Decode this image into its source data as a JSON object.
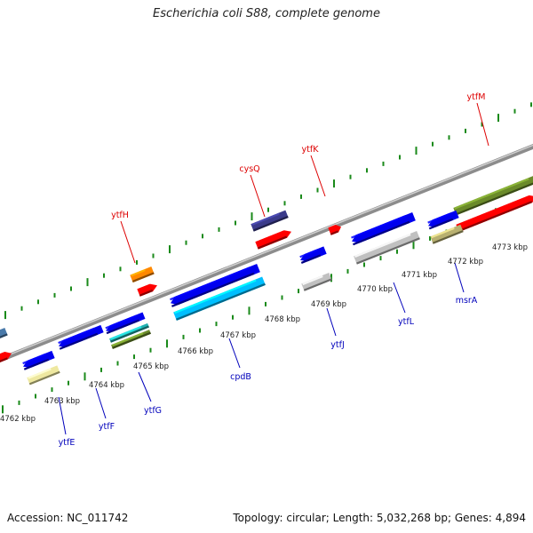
{
  "title": "Escherichia coli S88, complete genome",
  "footer": {
    "accession": "Accession: NC_011742",
    "stats": "Topology: circular; Length: 5,032,268 bp; Genes: 4,894"
  },
  "colors": {
    "backbone": "#8c8c8c",
    "tick_marks": "#1a8a1a",
    "top_labels": "#dd0000",
    "bottom_labels": "#0000bb"
  },
  "kbp_labels": [
    "4762 kbp",
    "4763 kbp",
    "4764 kbp",
    "4765 kbp",
    "4766 kbp",
    "4767 kbp",
    "4768 kbp",
    "4769 kbp",
    "4770 kbp",
    "4771 kbp",
    "4772 kbp",
    "4773 kbp"
  ],
  "gene_labels_top": [
    "ytfH",
    "cysQ",
    "ytfK",
    "ytfM"
  ],
  "gene_labels_bottom": [
    "ytfE",
    "ytfF",
    "ytfG",
    "cpdB",
    "ytfJ",
    "ytfL",
    "msrA"
  ],
  "feature_colors": {
    "cds_forward": "#ff0000",
    "cds_reverse": "#0000ee",
    "orange": "#ff8800",
    "navy": "#3a3a8a",
    "olive": "#6a8a2a",
    "cyan": "#00bfff",
    "silver": "#c0c0c0",
    "khaki": "#b8b070",
    "pale_yellow": "#eee8a0",
    "teal": "#20b0b0",
    "steel": "#4a7aaa"
  }
}
